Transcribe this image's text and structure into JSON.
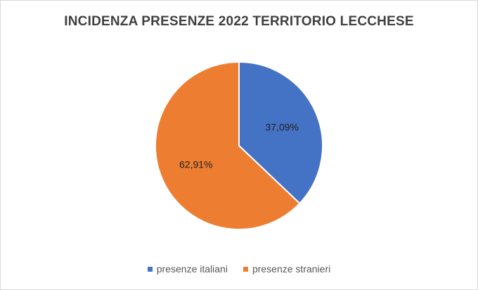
{
  "chart_data": {
    "type": "pie",
    "title": "INCIDENZA PRESENZE 2022 TERRITORIO LECCHESE",
    "categories": [
      "presenze italiani",
      "presenze stranieri"
    ],
    "values": [
      37.09,
      62.91
    ],
    "data_labels": [
      "37,09%",
      "62,91%"
    ],
    "colors": [
      "#4472c4",
      "#ed7d31"
    ],
    "legend_position": "bottom",
    "start_angle": "top",
    "direction": "clockwise"
  }
}
